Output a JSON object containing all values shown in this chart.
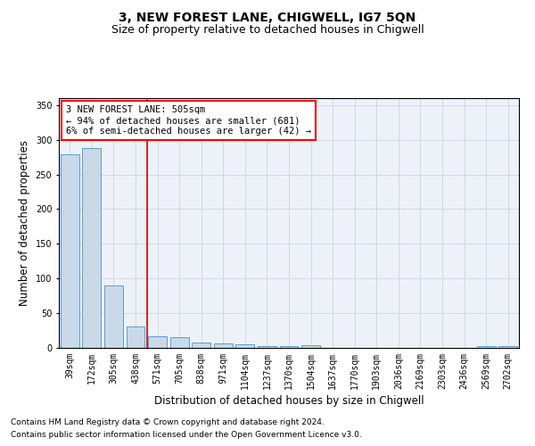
{
  "title": "3, NEW FOREST LANE, CHIGWELL, IG7 5QN",
  "subtitle": "Size of property relative to detached houses in Chigwell",
  "xlabel": "Distribution of detached houses by size in Chigwell",
  "ylabel": "Number of detached properties",
  "footnote1": "Contains HM Land Registry data © Crown copyright and database right 2024.",
  "footnote2": "Contains public sector information licensed under the Open Government Licence v3.0.",
  "annotation_line1": "3 NEW FOREST LANE: 505sqm",
  "annotation_line2": "← 94% of detached houses are smaller (681)",
  "annotation_line3": "6% of semi-detached houses are larger (42) →",
  "categories": [
    "39sqm",
    "172sqm",
    "305sqm",
    "438sqm",
    "571sqm",
    "705sqm",
    "838sqm",
    "971sqm",
    "1104sqm",
    "1237sqm",
    "1370sqm",
    "1504sqm",
    "1637sqm",
    "1770sqm",
    "1903sqm",
    "2036sqm",
    "2169sqm",
    "2303sqm",
    "2436sqm",
    "2569sqm",
    "2702sqm"
  ],
  "values": [
    279,
    288,
    90,
    31,
    17,
    16,
    8,
    7,
    5,
    2,
    2,
    4,
    0,
    0,
    0,
    0,
    0,
    0,
    0,
    3,
    3
  ],
  "bar_color": "#c9d9e8",
  "bar_edge_color": "#5b9bd5",
  "red_line_x": 3.52,
  "vline_color": "#cc0000",
  "grid_color": "#cdd8e8",
  "background_color": "#eef2f8",
  "ylim": [
    0,
    360
  ],
  "yticks": [
    0,
    50,
    100,
    150,
    200,
    250,
    300,
    350
  ],
  "title_fontsize": 10,
  "subtitle_fontsize": 9,
  "axis_label_fontsize": 8.5,
  "tick_fontsize": 7,
  "annotation_fontsize": 7.5,
  "footnote_fontsize": 6.5
}
